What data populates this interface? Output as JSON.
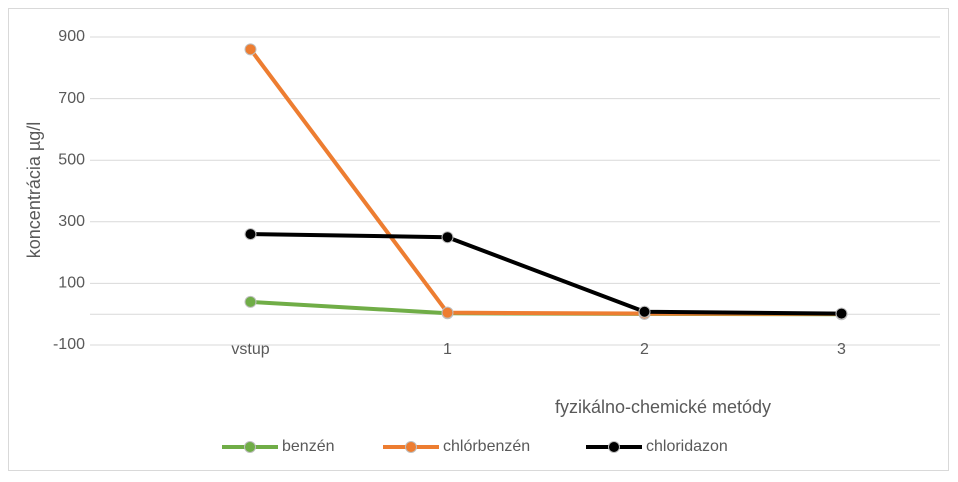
{
  "chart_data": {
    "type": "line",
    "y_label": "koncentrácia µg/l",
    "x_label": "fyzikálno-chemické metódy",
    "categories": [
      "vstup",
      "1",
      "2",
      "3"
    ],
    "series": [
      {
        "name": "benzén",
        "color": "#70ad47",
        "values": [
          40,
          3,
          1,
          0
        ]
      },
      {
        "name": "chlórbenzén",
        "color": "#ed7d31",
        "values": [
          860,
          5,
          2,
          1
        ]
      },
      {
        "name": "chloridazon",
        "color": "#000000",
        "values": [
          260,
          250,
          8,
          2
        ]
      }
    ],
    "ylim": [
      -100,
      900
    ],
    "yticks": [
      -100,
      100,
      300,
      500,
      700,
      900
    ],
    "grid": true,
    "legend": "bottom"
  }
}
